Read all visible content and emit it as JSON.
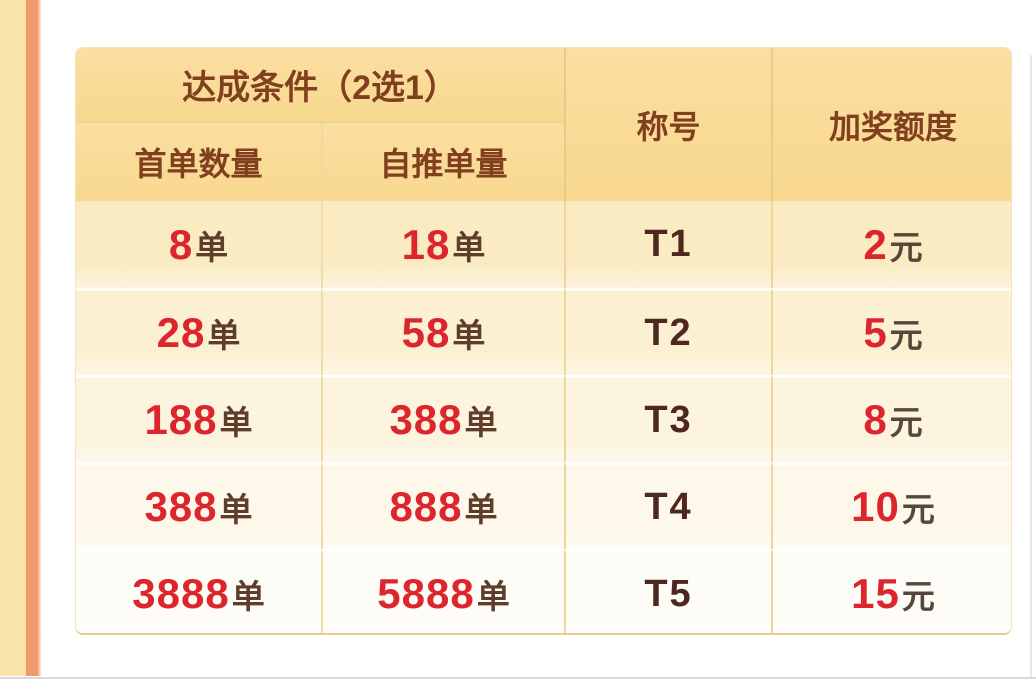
{
  "decor": {
    "left_strip_color": "#fae3a8",
    "accent_bar_color": "#ee9a6c",
    "bottom_line_color": "#d9d9db",
    "right_line_color": "#e7e7e9"
  },
  "table": {
    "merged_header": "达成条件（2选1）",
    "col_headers": {
      "first_order": "首单数量",
      "self_push": "自推单量",
      "title": "称号",
      "bonus": "加奖额度"
    },
    "order_suffix": "单",
    "currency_suffix": "元",
    "rows": [
      {
        "first_orders": "8",
        "self_orders": "18",
        "tier": "T1",
        "bonus": "2"
      },
      {
        "first_orders": "28",
        "self_orders": "58",
        "tier": "T2",
        "bonus": "5"
      },
      {
        "first_orders": "188",
        "self_orders": "388",
        "tier": "T3",
        "bonus": "8"
      },
      {
        "first_orders": "388",
        "self_orders": "888",
        "tier": "T4",
        "bonus": "10"
      },
      {
        "first_orders": "3888",
        "self_orders": "5888",
        "tier": "T5",
        "bonus": "15"
      }
    ],
    "colors": {
      "header_bg": "#fadc9a",
      "header_text": "#803f1f",
      "number_red": "#dd252e",
      "order_unit_text": "#5e3e2b",
      "currency_text": "#55483b",
      "tier_text": "#4e2720",
      "row_backgrounds": [
        "#faebc2",
        "#fbf0d2",
        "#fcf4de",
        "#fdf8ea",
        "#fefcf6"
      ]
    }
  }
}
